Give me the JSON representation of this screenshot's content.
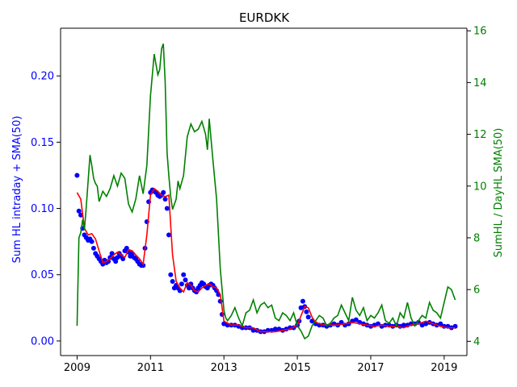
{
  "chart_data": {
    "type": "scatter",
    "title": "EURDKK",
    "x_ticks": [
      "2009",
      "2011",
      "2013",
      "2015",
      "2017",
      "2019"
    ],
    "x_range": [
      2008.55,
      2019.62
    ],
    "left_axis": {
      "label": "Sum HL intraday + SMA(50)",
      "ylim": [
        -0.011,
        0.236
      ],
      "ticks": [
        "0.00",
        "0.05",
        "0.10",
        "0.15",
        "0.20"
      ],
      "color": "#0000ff"
    },
    "right_axis": {
      "label": "SumHL / DayHL SMA(50)",
      "ylim": [
        3.45,
        16.1
      ],
      "ticks": [
        "4",
        "6",
        "8",
        "10",
        "12",
        "14",
        "16"
      ],
      "color": "#008000"
    },
    "series": [
      {
        "name": "Sum HL intraday",
        "kind": "scatter",
        "axis": "left",
        "color": "#0000ff",
        "x": [
          2009.0,
          2009.05,
          2009.1,
          2009.15,
          2009.2,
          2009.25,
          2009.3,
          2009.35,
          2009.4,
          2009.45,
          2009.5,
          2009.55,
          2009.6,
          2009.65,
          2009.7,
          2009.75,
          2009.8,
          2009.85,
          2009.9,
          2009.95,
          2010.0,
          2010.05,
          2010.1,
          2010.15,
          2010.2,
          2010.25,
          2010.3,
          2010.35,
          2010.4,
          2010.45,
          2010.5,
          2010.55,
          2010.6,
          2010.65,
          2010.7,
          2010.75,
          2010.8,
          2010.85,
          2010.9,
          2010.95,
          2011.0,
          2011.05,
          2011.1,
          2011.15,
          2011.2,
          2011.25,
          2011.3,
          2011.35,
          2011.4,
          2011.45,
          2011.5,
          2011.55,
          2011.6,
          2011.65,
          2011.7,
          2011.75,
          2011.8,
          2011.85,
          2011.9,
          2011.95,
          2012.0,
          2012.05,
          2012.1,
          2012.15,
          2012.2,
          2012.25,
          2012.3,
          2012.35,
          2012.4,
          2012.45,
          2012.5,
          2012.55,
          2012.6,
          2012.65,
          2012.7,
          2012.75,
          2012.8,
          2012.85,
          2012.9,
          2012.95,
          2013.0,
          2013.1,
          2013.2,
          2013.3,
          2013.4,
          2013.5,
          2013.6,
          2013.7,
          2013.8,
          2013.9,
          2014.0,
          2014.1,
          2014.2,
          2014.3,
          2014.4,
          2014.5,
          2014.6,
          2014.7,
          2014.8,
          2014.9,
          2015.0,
          2015.05,
          2015.1,
          2015.15,
          2015.2,
          2015.25,
          2015.3,
          2015.4,
          2015.5,
          2015.6,
          2015.7,
          2015.8,
          2015.9,
          2016.0,
          2016.1,
          2016.2,
          2016.3,
          2016.4,
          2016.5,
          2016.6,
          2016.7,
          2016.8,
          2016.9,
          2017.0,
          2017.1,
          2017.2,
          2017.3,
          2017.4,
          2017.5,
          2017.6,
          2017.7,
          2017.8,
          2017.9,
          2018.0,
          2018.1,
          2018.2,
          2018.3,
          2018.4,
          2018.5,
          2018.6,
          2018.7,
          2018.8,
          2018.9,
          2019.0,
          2019.1,
          2019.2,
          2019.3
        ],
        "y": [
          0.125,
          0.098,
          0.095,
          0.085,
          0.08,
          0.078,
          0.076,
          0.077,
          0.075,
          0.07,
          0.066,
          0.064,
          0.062,
          0.06,
          0.058,
          0.061,
          0.059,
          0.06,
          0.063,
          0.066,
          0.062,
          0.06,
          0.063,
          0.066,
          0.064,
          0.062,
          0.068,
          0.07,
          0.067,
          0.064,
          0.066,
          0.063,
          0.062,
          0.06,
          0.058,
          0.057,
          0.057,
          0.07,
          0.09,
          0.105,
          0.112,
          0.114,
          0.113,
          0.112,
          0.11,
          0.109,
          0.11,
          0.112,
          0.107,
          0.1,
          0.08,
          0.05,
          0.045,
          0.04,
          0.042,
          0.04,
          0.038,
          0.043,
          0.05,
          0.046,
          0.042,
          0.04,
          0.043,
          0.04,
          0.038,
          0.037,
          0.04,
          0.042,
          0.044,
          0.043,
          0.041,
          0.04,
          0.042,
          0.043,
          0.042,
          0.04,
          0.038,
          0.035,
          0.03,
          0.02,
          0.013,
          0.012,
          0.012,
          0.012,
          0.011,
          0.01,
          0.01,
          0.01,
          0.008,
          0.008,
          0.007,
          0.007,
          0.008,
          0.008,
          0.009,
          0.009,
          0.008,
          0.009,
          0.01,
          0.01,
          0.012,
          0.015,
          0.025,
          0.03,
          0.026,
          0.022,
          0.018,
          0.015,
          0.013,
          0.012,
          0.012,
          0.011,
          0.012,
          0.013,
          0.012,
          0.014,
          0.012,
          0.013,
          0.015,
          0.016,
          0.014,
          0.013,
          0.012,
          0.011,
          0.012,
          0.013,
          0.011,
          0.012,
          0.012,
          0.011,
          0.012,
          0.011,
          0.012,
          0.012,
          0.013,
          0.013,
          0.014,
          0.012,
          0.013,
          0.014,
          0.013,
          0.012,
          0.013,
          0.011,
          0.011,
          0.01,
          0.011
        ]
      },
      {
        "name": "SMA(50)",
        "kind": "line",
        "axis": "left",
        "color": "#ff0000",
        "x": [
          2009.0,
          2009.1,
          2009.2,
          2009.3,
          2009.4,
          2009.5,
          2009.6,
          2009.7,
          2009.8,
          2009.9,
          2010.0,
          2010.1,
          2010.2,
          2010.3,
          2010.4,
          2010.5,
          2010.6,
          2010.7,
          2010.8,
          2010.9,
          2011.0,
          2011.1,
          2011.2,
          2011.3,
          2011.4,
          2011.5,
          2011.6,
          2011.7,
          2011.8,
          2011.9,
          2012.0,
          2012.1,
          2012.2,
          2012.3,
          2012.4,
          2012.5,
          2012.6,
          2012.7,
          2012.8,
          2012.9,
          2013.0,
          2013.2,
          2013.4,
          2013.6,
          2013.8,
          2014.0,
          2014.2,
          2014.4,
          2014.6,
          2014.8,
          2015.0,
          2015.2,
          2015.3,
          2015.4,
          2015.5,
          2015.7,
          2015.9,
          2016.1,
          2016.3,
          2016.5,
          2016.7,
          2016.9,
          2017.1,
          2017.3,
          2017.5,
          2017.7,
          2017.9,
          2018.1,
          2018.3,
          2018.5,
          2018.7,
          2018.9,
          2019.1,
          2019.3
        ],
        "y": [
          0.112,
          0.107,
          0.085,
          0.08,
          0.081,
          0.077,
          0.068,
          0.059,
          0.06,
          0.062,
          0.065,
          0.067,
          0.065,
          0.063,
          0.069,
          0.068,
          0.065,
          0.062,
          0.058,
          0.08,
          0.11,
          0.115,
          0.113,
          0.11,
          0.109,
          0.11,
          0.065,
          0.045,
          0.04,
          0.037,
          0.044,
          0.042,
          0.038,
          0.037,
          0.04,
          0.042,
          0.043,
          0.041,
          0.04,
          0.035,
          0.015,
          0.012,
          0.012,
          0.01,
          0.01,
          0.007,
          0.007,
          0.007,
          0.008,
          0.009,
          0.012,
          0.026,
          0.025,
          0.018,
          0.014,
          0.012,
          0.012,
          0.012,
          0.013,
          0.014,
          0.013,
          0.012,
          0.011,
          0.012,
          0.011,
          0.011,
          0.01,
          0.012,
          0.013,
          0.015,
          0.013,
          0.011,
          0.01,
          0.01
        ]
      },
      {
        "name": "SumHL / DayHL SMA(50)",
        "kind": "line",
        "axis": "right",
        "color": "#008000",
        "x": [
          2009.0,
          2009.05,
          2009.1,
          2009.15,
          2009.2,
          2009.25,
          2009.3,
          2009.35,
          2009.4,
          2009.45,
          2009.5,
          2009.55,
          2009.6,
          2009.7,
          2009.8,
          2009.9,
          2010.0,
          2010.1,
          2010.2,
          2010.3,
          2010.4,
          2010.5,
          2010.6,
          2010.7,
          2010.8,
          2010.9,
          2011.0,
          2011.1,
          2011.15,
          2011.2,
          2011.25,
          2011.3,
          2011.35,
          2011.4,
          2011.45,
          2011.5,
          2011.55,
          2011.6,
          2011.65,
          2011.7,
          2011.75,
          2011.8,
          2011.9,
          2012.0,
          2012.1,
          2012.2,
          2012.3,
          2012.4,
          2012.5,
          2012.55,
          2012.6,
          2012.7,
          2012.8,
          2012.9,
          2013.0,
          2013.05,
          2013.1,
          2013.2,
          2013.3,
          2013.4,
          2013.5,
          2013.6,
          2013.7,
          2013.8,
          2013.9,
          2014.0,
          2014.1,
          2014.2,
          2014.3,
          2014.4,
          2014.5,
          2014.6,
          2014.7,
          2014.8,
          2014.9,
          2015.0,
          2015.1,
          2015.2,
          2015.3,
          2015.4,
          2015.5,
          2015.6,
          2015.7,
          2015.8,
          2015.9,
          2016.0,
          2016.1,
          2016.2,
          2016.3,
          2016.4,
          2016.5,
          2016.6,
          2016.7,
          2016.8,
          2016.9,
          2017.0,
          2017.1,
          2017.2,
          2017.3,
          2017.4,
          2017.5,
          2017.6,
          2017.7,
          2017.8,
          2017.9,
          2018.0,
          2018.1,
          2018.2,
          2018.3,
          2018.4,
          2018.5,
          2018.6,
          2018.7,
          2018.8,
          2018.9,
          2019.0,
          2019.1,
          2019.2,
          2019.3
        ],
        "y": [
          4.6,
          8.0,
          8.2,
          8.7,
          8.3,
          9.2,
          10.2,
          11.2,
          10.8,
          10.3,
          10.1,
          10.0,
          9.4,
          9.8,
          9.6,
          9.9,
          10.4,
          10.0,
          10.5,
          10.3,
          9.3,
          9.0,
          9.5,
          10.4,
          9.7,
          10.8,
          13.5,
          15.1,
          14.7,
          14.3,
          14.5,
          15.3,
          15.5,
          14.0,
          11.3,
          10.4,
          9.6,
          9.1,
          9.3,
          9.5,
          10.2,
          9.9,
          10.4,
          11.9,
          12.4,
          12.1,
          12.2,
          12.5,
          12.0,
          11.4,
          12.6,
          11.0,
          9.5,
          6.8,
          5.2,
          4.9,
          4.8,
          5.0,
          5.3,
          4.9,
          4.6,
          5.1,
          5.2,
          5.6,
          5.1,
          5.4,
          5.5,
          5.3,
          5.4,
          4.9,
          4.8,
          5.1,
          5.0,
          4.8,
          5.1,
          4.6,
          4.4,
          4.1,
          4.2,
          4.6,
          4.8,
          5.0,
          4.9,
          4.6,
          4.7,
          4.9,
          5.0,
          5.4,
          5.1,
          4.8,
          5.7,
          5.2,
          5.0,
          5.3,
          4.8,
          5.0,
          4.9,
          5.1,
          5.4,
          4.8,
          4.7,
          4.9,
          4.6,
          5.1,
          4.9,
          5.5,
          4.9,
          4.6,
          4.8,
          5.0,
          4.9,
          5.5,
          5.2,
          5.1,
          4.9,
          5.5,
          6.1,
          6.0,
          5.6
        ]
      }
    ]
  }
}
